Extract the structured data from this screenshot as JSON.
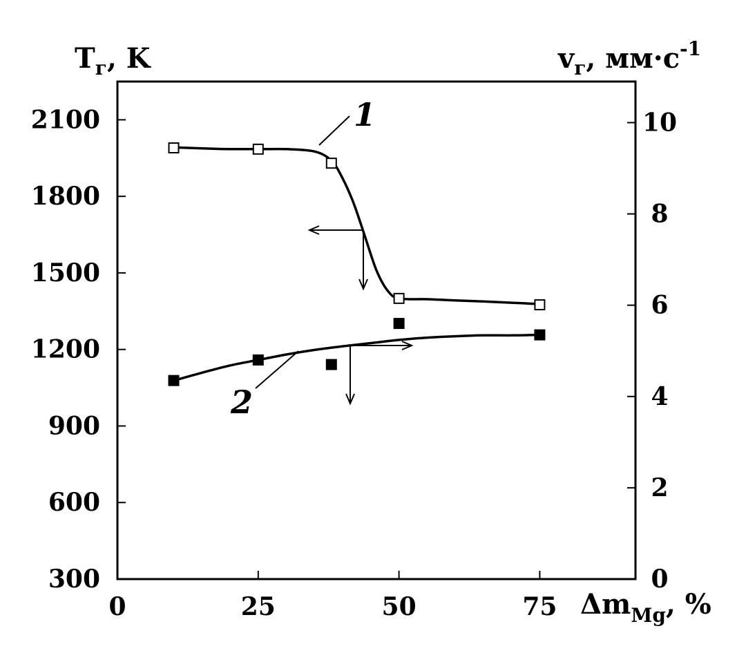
{
  "chart_data": {
    "type": "line",
    "left_axis": {
      "title_main": "T",
      "title_sub": "г",
      "title_unit": ", K",
      "ylim": [
        300,
        2250
      ],
      "ticks": [
        300,
        600,
        900,
        1200,
        1500,
        1800,
        2100
      ],
      "tick_labels": [
        "300",
        "600",
        "900",
        "1200",
        "1500",
        "1800",
        "2100"
      ]
    },
    "right_axis": {
      "title_main": "v",
      "title_sub": "г",
      "title_unit": ", мм·с",
      "title_sup": "-1",
      "ylim": [
        0,
        10.9
      ],
      "ticks": [
        0,
        2,
        4,
        6,
        8,
        10
      ],
      "tick_labels": [
        "0",
        "2",
        "4",
        "6",
        "8",
        "10"
      ]
    },
    "x_axis": {
      "title_main": "Δm",
      "title_sub": "Mg",
      "title_unit": ", %",
      "xlim": [
        0,
        92
      ],
      "ticks": [
        0,
        25,
        50,
        75
      ],
      "tick_labels": [
        "0",
        "25",
        "50",
        "75"
      ]
    },
    "series": [
      {
        "label": "1",
        "axis": "left",
        "marker": "open-square",
        "x": [
          10,
          25,
          38,
          50,
          75
        ],
        "y": [
          1990,
          1985,
          1930,
          1400,
          1375
        ],
        "curve_x": [
          10,
          18,
          25,
          30,
          35,
          38,
          40,
          42,
          44,
          46,
          48,
          50,
          55,
          60,
          65,
          70,
          75
        ],
        "curve_y": [
          1992,
          1986,
          1985,
          1985,
          1976,
          1940,
          1870,
          1770,
          1640,
          1510,
          1430,
          1400,
          1397,
          1392,
          1388,
          1383,
          1378
        ]
      },
      {
        "label": "2",
        "axis": "right",
        "marker": "filled-square",
        "x": [
          10,
          25,
          38,
          50,
          75
        ],
        "y": [
          4.35,
          4.8,
          4.7,
          5.6,
          5.35
        ],
        "curve_x": [
          10,
          15,
          20,
          25,
          30,
          35,
          40,
          45,
          50,
          55,
          60,
          65,
          70,
          75
        ],
        "curve_y": [
          4.35,
          4.52,
          4.68,
          4.8,
          4.92,
          5.02,
          5.1,
          5.17,
          5.24,
          5.29,
          5.32,
          5.34,
          5.34,
          5.35
        ]
      }
    ]
  }
}
